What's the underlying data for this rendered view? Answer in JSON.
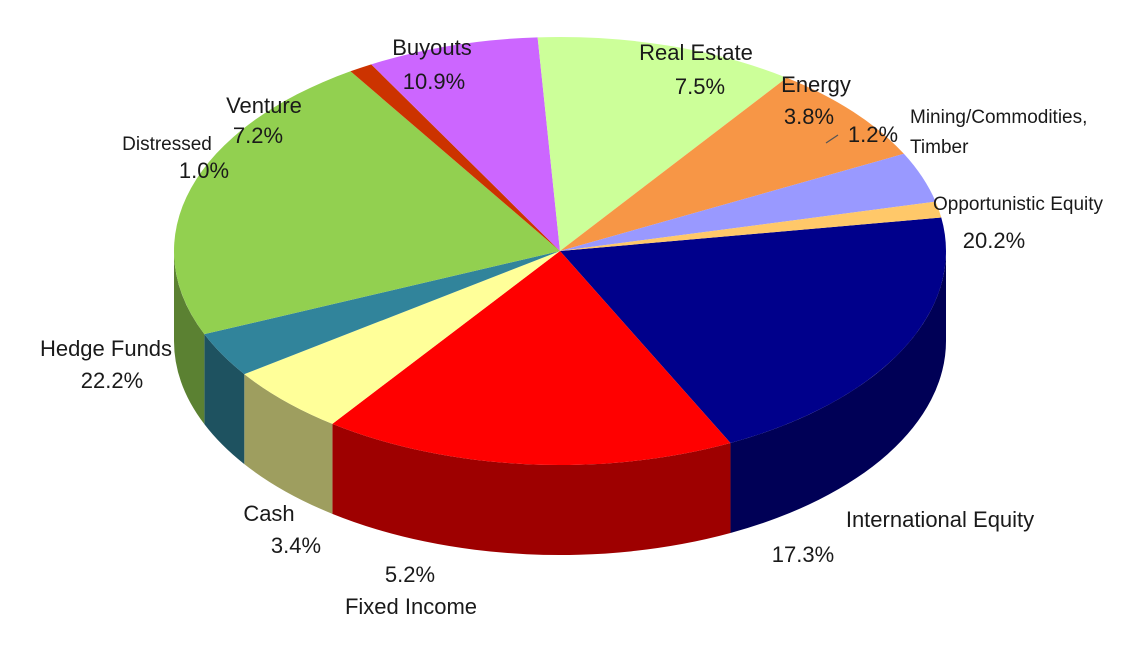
{
  "chart_data": {
    "type": "pie",
    "title": "",
    "three_d": true,
    "slices": [
      {
        "name": "Opportunistic Equity",
        "value": 20.2,
        "label": "20.2%",
        "color": "#00008B"
      },
      {
        "name": "International Equity",
        "value": 17.3,
        "label": "17.3%",
        "color": "#FF0000"
      },
      {
        "name": "Fixed Income",
        "value": 5.2,
        "label": "5.2%",
        "color": "#FFFF99"
      },
      {
        "name": "Cash",
        "value": 3.4,
        "label": "3.4%",
        "color": "#31849B"
      },
      {
        "name": "Hedge Funds",
        "value": 22.2,
        "label": "22.2%",
        "color": "#92D050"
      },
      {
        "name": "Distressed",
        "value": 1.0,
        "label": "1.0%",
        "color": "#CC3300"
      },
      {
        "name": "Venture",
        "value": 7.2,
        "label": "7.2%",
        "color": "#CC66FF"
      },
      {
        "name": "Buyouts",
        "value": 10.9,
        "label": "10.9%",
        "color": "#CCFF99"
      },
      {
        "name": "Real Estate",
        "value": 7.5,
        "label": "7.5%",
        "color": "#F79646"
      },
      {
        "name": "Energy",
        "value": 3.8,
        "label": "3.8%",
        "color": "#9999FF"
      },
      {
        "name": "Mining/Commodities, Timber",
        "value": 1.2,
        "label": "1.2%",
        "color": "#FFC869"
      }
    ]
  }
}
